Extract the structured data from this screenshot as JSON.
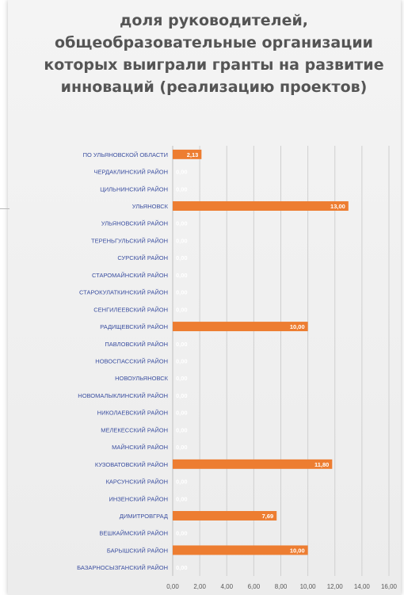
{
  "chart_data": {
    "type": "bar",
    "orientation": "horizontal",
    "title": "доля руководителей, общеобразовательные организации которых выиграли гранты на развитие инноваций (реализацию проектов)",
    "categories": [
      "ПО УЛЬЯНОВСКОЙ ОБЛАСТИ",
      "ЧЕРДАКЛИНСКИЙ РАЙОН",
      "ЦИЛЬНИНСКИЙ РАЙОН",
      "УЛЬЯНОВСК",
      "УЛЬЯНОВСКИЙ РАЙОН",
      "ТЕРЕНЬГУЛЬСКИЙ РАЙОН",
      "СУРСКИЙ РАЙОН",
      "СТАРОМАЙНСКИЙ РАЙОН",
      "СТАРОКУЛАТКИНСКИЙ РАЙОН",
      "СЕНГИЛЕЕВСКИЙ РАЙОН",
      "РАДИЩЕВСКИЙ РАЙОН",
      "ПАВЛОВСКИЙ РАЙОН",
      "НОВОСПАССКИЙ РАЙОН",
      "НОВОУЛЬЯНОВСК",
      "НОВОМАЛЫКЛИНСКИЙ РАЙОН",
      "НИКОЛАЕВСКИЙ РАЙОН",
      "МЕЛЕКЕССКИЙ РАЙОН",
      "МАЙНСКИЙ РАЙОН",
      "КУЗОВАТОВСКИЙ РАЙОН",
      "КАРСУНСКИЙ РАЙОН",
      "ИНЗЕНСКИЙ РАЙОН",
      "ДИМИТРОВГРАД",
      "ВЕШКАЙМСКИЙ РАЙОН",
      "БАРЫШСКИЙ РАЙОН",
      "БАЗАРНОСЫЗГАНСКИЙ РАЙОН"
    ],
    "values": [
      2.13,
      0,
      0,
      13.0,
      0,
      0,
      0,
      0,
      0,
      0,
      10.0,
      0,
      0,
      0,
      0,
      0,
      0,
      0,
      11.8,
      0,
      0,
      7.69,
      0,
      10.0,
      0
    ],
    "value_labels": [
      "2,13",
      "0,00",
      "0,00",
      "13,00",
      "0,00",
      "0,00",
      "0,00",
      "0,00",
      "0,00",
      "0,00",
      "10,00",
      "0,00",
      "0,00",
      "0,00",
      "0,00",
      "0,00",
      "0,00",
      "0,00",
      "11,80",
      "0,00",
      "0,00",
      "7,69",
      "0,00",
      "10,00",
      "0,00"
    ],
    "xticks": [
      "0,00",
      "2,00",
      "4,00",
      "6,00",
      "8,00",
      "10,00",
      "12,00",
      "14,00",
      "16,00"
    ],
    "xlim": [
      0,
      16
    ],
    "grid": true,
    "bar_color": "#ed7d31"
  }
}
